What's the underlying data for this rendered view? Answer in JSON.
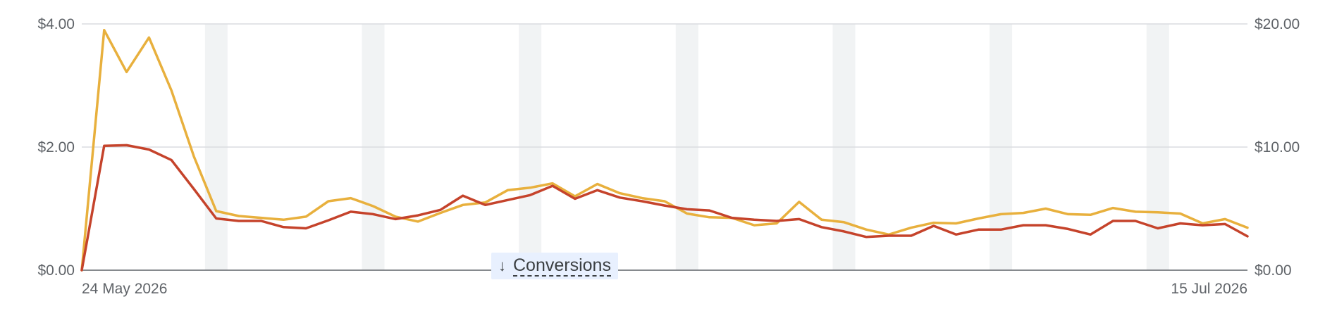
{
  "chart_data": {
    "type": "line",
    "x_start": "24 May 2026",
    "x_end": "15 Jul 2026",
    "x_tick_labels": [
      "24 May 2026",
      "15 Jul 2026"
    ],
    "y_left": {
      "ticks": [
        "$0.00",
        "$2.00",
        "$4.00"
      ],
      "ylim": [
        0,
        4
      ]
    },
    "y_right": {
      "ticks": [
        "$0.00",
        "$10.00",
        "$20.00"
      ],
      "ylim": [
        0,
        20
      ]
    },
    "grid": true,
    "weekend_bands": true,
    "series": [
      {
        "color": "#e8b03d",
        "axis": "left",
        "values": [
          0.0,
          3.9,
          3.22,
          3.78,
          2.92,
          1.85,
          0.96,
          0.88,
          0.85,
          0.82,
          0.87,
          1.12,
          1.17,
          1.04,
          0.87,
          0.79,
          0.93,
          1.06,
          1.1,
          1.3,
          1.34,
          1.41,
          1.2,
          1.4,
          1.25,
          1.17,
          1.12,
          0.92,
          0.86,
          0.85,
          0.73,
          0.76,
          1.11,
          0.82,
          0.78,
          0.66,
          0.58,
          0.69,
          0.77,
          0.76,
          0.84,
          0.91,
          0.93,
          1.0,
          0.91,
          0.9,
          1.01,
          0.95,
          0.94,
          0.92,
          0.76,
          0.83,
          0.69
        ]
      },
      {
        "color": "#c5432b",
        "axis": "left",
        "values": [
          0.0,
          2.02,
          2.03,
          1.96,
          1.79,
          1.32,
          0.84,
          0.8,
          0.8,
          0.7,
          0.68,
          0.81,
          0.95,
          0.91,
          0.83,
          0.89,
          0.98,
          1.21,
          1.06,
          1.14,
          1.22,
          1.37,
          1.16,
          1.3,
          1.18,
          1.12,
          1.05,
          0.99,
          0.97,
          0.85,
          0.82,
          0.8,
          0.83,
          0.7,
          0.63,
          0.54,
          0.56,
          0.56,
          0.72,
          0.58,
          0.66,
          0.66,
          0.73,
          0.73,
          0.67,
          0.58,
          0.8,
          0.8,
          0.68,
          0.76,
          0.73,
          0.75,
          0.55
        ]
      }
    ]
  },
  "metric_chip": {
    "arrow": "↓",
    "label": "Conversions"
  }
}
